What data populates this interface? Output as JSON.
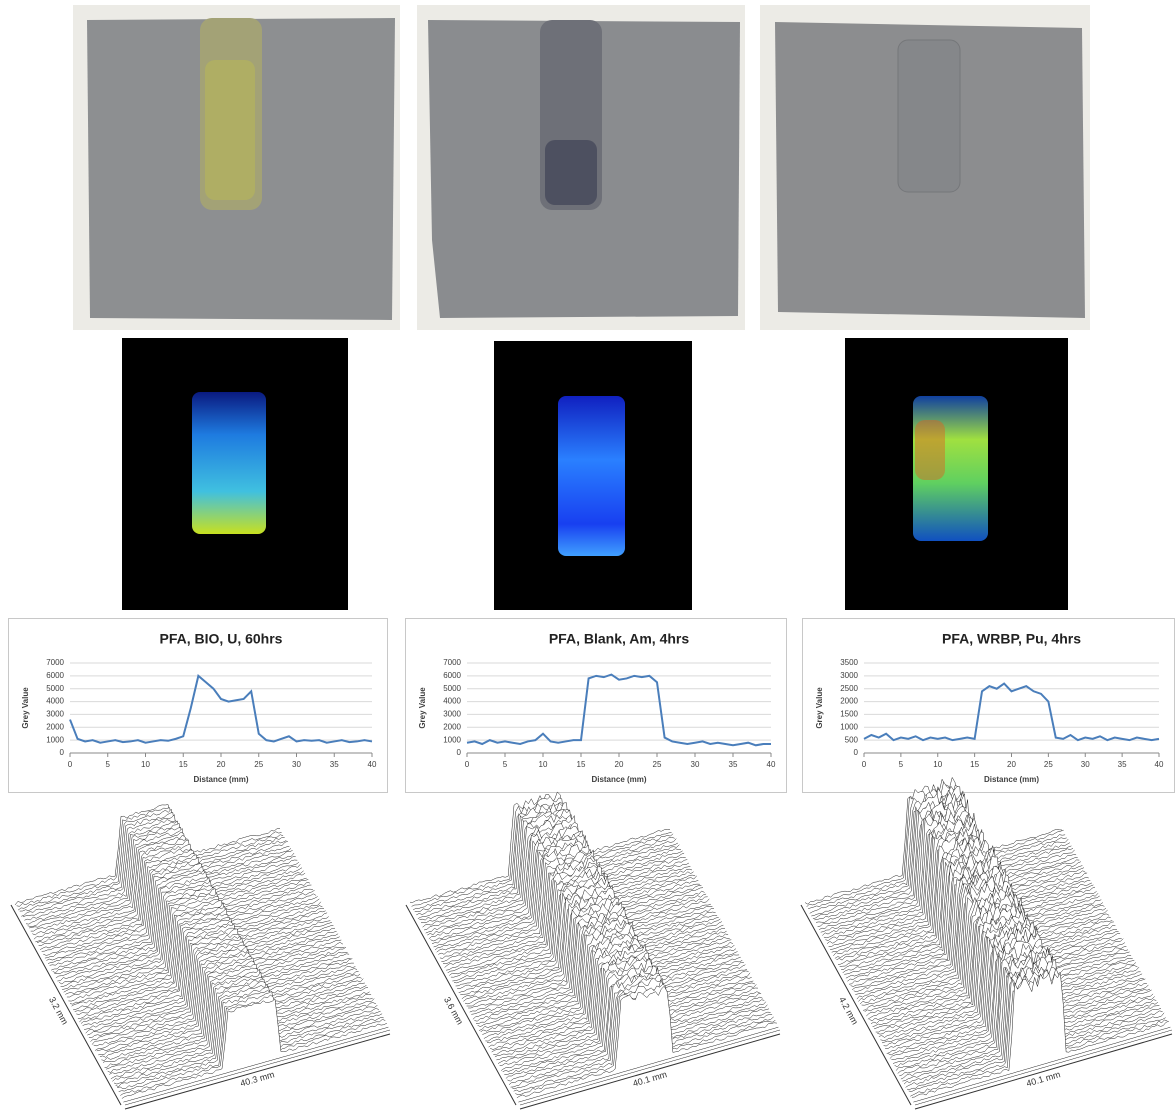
{
  "chart_data": [
    {
      "type": "line",
      "title": "PFA, BIO, U, 60hrs",
      "x_label": "Distance (mm)",
      "y_label": "Grey Value",
      "x": [
        0,
        1,
        2,
        3,
        4,
        5,
        6,
        7,
        8,
        9,
        10,
        11,
        12,
        13,
        14,
        15,
        16,
        17,
        18,
        19,
        20,
        21,
        22,
        23,
        24,
        25,
        26,
        27,
        28,
        29,
        30,
        31,
        32,
        33,
        34,
        35,
        36,
        37,
        38,
        39,
        40
      ],
      "values": [
        2600,
        1100,
        900,
        1000,
        800,
        900,
        1000,
        850,
        900,
        1000,
        800,
        900,
        1000,
        950,
        1100,
        1300,
        3500,
        6000,
        5500,
        5000,
        4200,
        4000,
        4100,
        4200,
        4800,
        1500,
        1000,
        900,
        1100,
        1300,
        900,
        1000,
        950,
        1000,
        800,
        900,
        1000,
        850,
        900,
        1000,
        900
      ],
      "color": "#4a7ebb",
      "xlim": [
        0,
        40
      ],
      "xticks": [
        0,
        5,
        10,
        15,
        20,
        25,
        30,
        35,
        40
      ],
      "ylim": [
        0,
        7000
      ],
      "yticks": [
        0,
        1000,
        2000,
        3000,
        4000,
        5000,
        6000,
        7000
      ],
      "grid": true
    },
    {
      "type": "line",
      "title": "PFA, Blank, Am, 4hrs",
      "x_label": "Distance (mm)",
      "y_label": "Grey Value",
      "x": [
        0,
        1,
        2,
        3,
        4,
        5,
        6,
        7,
        8,
        9,
        10,
        11,
        12,
        13,
        14,
        15,
        16,
        17,
        18,
        19,
        20,
        21,
        22,
        23,
        24,
        25,
        26,
        27,
        28,
        29,
        30,
        31,
        32,
        33,
        34,
        35,
        36,
        37,
        38,
        39,
        40
      ],
      "values": [
        800,
        900,
        700,
        1000,
        800,
        900,
        800,
        700,
        900,
        1000,
        1500,
        900,
        800,
        900,
        1000,
        1000,
        5800,
        6000,
        5900,
        6100,
        5700,
        5800,
        6000,
        5900,
        6000,
        5500,
        1200,
        900,
        800,
        700,
        800,
        900,
        700,
        800,
        700,
        600,
        700,
        800,
        600,
        700,
        700
      ],
      "color": "#4a7ebb",
      "xlim": [
        0,
        40
      ],
      "xticks": [
        0,
        5,
        10,
        15,
        20,
        25,
        30,
        35,
        40
      ],
      "ylim": [
        0,
        7000
      ],
      "yticks": [
        0,
        1000,
        2000,
        3000,
        4000,
        5000,
        6000,
        7000
      ],
      "grid": true
    },
    {
      "type": "line",
      "title": "PFA, WRBP, Pu, 4hrs",
      "x_label": "Distance (mm)",
      "y_label": "Grey Value",
      "x": [
        0,
        1,
        2,
        3,
        4,
        5,
        6,
        7,
        8,
        9,
        10,
        11,
        12,
        13,
        14,
        15,
        16,
        17,
        18,
        19,
        20,
        21,
        22,
        23,
        24,
        25,
        26,
        27,
        28,
        29,
        30,
        31,
        32,
        33,
        34,
        35,
        36,
        37,
        38,
        39,
        40
      ],
      "values": [
        550,
        700,
        600,
        750,
        500,
        600,
        550,
        650,
        500,
        600,
        550,
        600,
        500,
        550,
        600,
        550,
        2400,
        2600,
        2500,
        2700,
        2400,
        2500,
        2600,
        2400,
        2300,
        2000,
        600,
        550,
        700,
        500,
        600,
        550,
        650,
        500,
        600,
        550,
        500,
        600,
        550,
        500,
        550
      ],
      "color": "#4a7ebb",
      "xlim": [
        0,
        40
      ],
      "xticks": [
        0,
        5,
        10,
        15,
        20,
        25,
        30,
        35,
        40
      ],
      "ylim": [
        0,
        3500
      ],
      "yticks": [
        0,
        500,
        1000,
        1500,
        2000,
        2500,
        3000,
        3500
      ],
      "grid": true
    }
  ],
  "surface_plots": [
    {
      "depth_label": "3.2 mm",
      "length_label": "40.3 mm"
    },
    {
      "depth_label": "3.6 mm",
      "length_label": "40.1 mm"
    },
    {
      "depth_label": "4.2 mm",
      "length_label": "40.1 mm"
    }
  ]
}
